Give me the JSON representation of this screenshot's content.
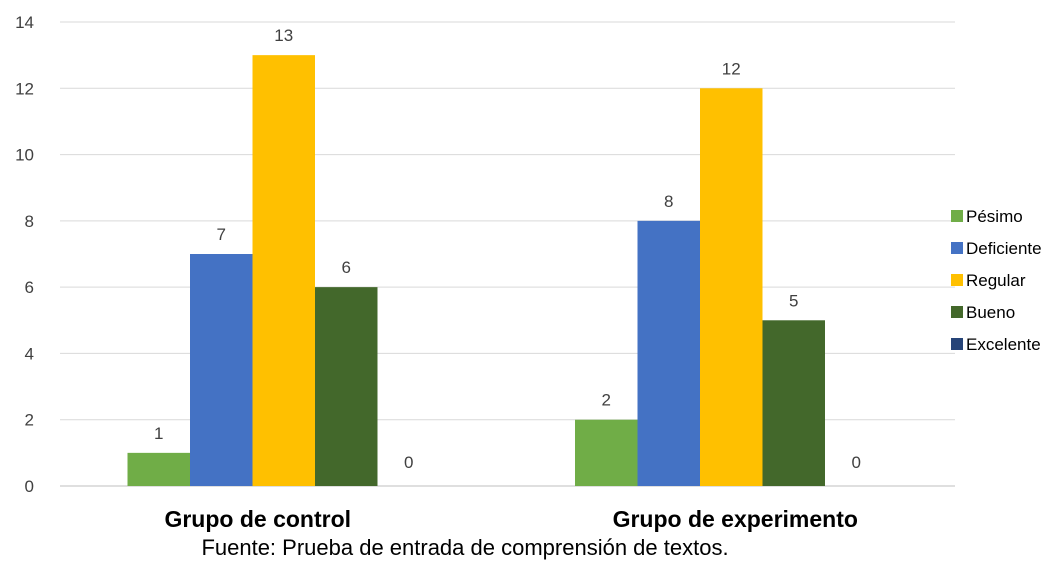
{
  "chart_data": {
    "type": "bar",
    "categories": [
      "Grupo de control",
      "Grupo de experimento"
    ],
    "series": [
      {
        "name": "Pésimo",
        "values": [
          1,
          2
        ],
        "color": "#70AD47"
      },
      {
        "name": "Deficiente",
        "values": [
          7,
          8
        ],
        "color": "#4472C4"
      },
      {
        "name": "Regular",
        "values": [
          13,
          12
        ],
        "color": "#FFC000"
      },
      {
        "name": "Bueno",
        "values": [
          6,
          5
        ],
        "color": "#43682B"
      },
      {
        "name": "Excelente",
        "values": [
          0,
          0
        ],
        "color": "#264478"
      }
    ],
    "ylim": [
      0,
      14
    ],
    "yticks": [
      0,
      2,
      4,
      6,
      8,
      10,
      12,
      14
    ],
    "grid": true,
    "legend_position": "right",
    "data_labels": true
  },
  "source_note": "Fuente: Prueba de entrada de comprensión de textos."
}
